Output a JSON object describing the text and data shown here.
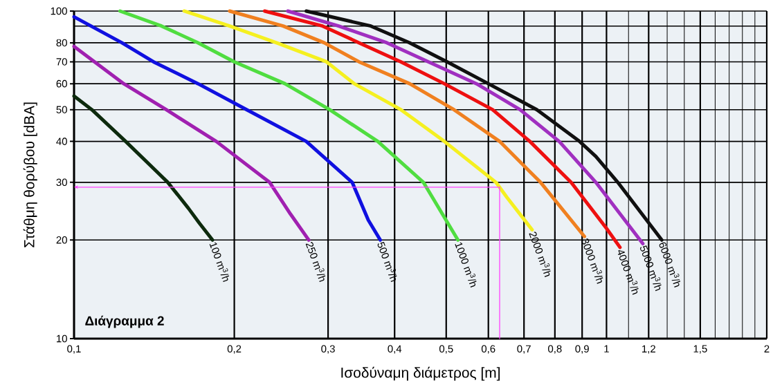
{
  "chart_data": {
    "type": "line",
    "xlabel": "Ισοδύναμη διάμετρος [m]",
    "ylabel": "Στάθμη θορύβου [dBA]",
    "annotations": [
      "Διάγραμμα 2"
    ],
    "log": "xy",
    "grid": true,
    "marker": "none",
    "line_style": "solid",
    "xlim": [
      0.1,
      2
    ],
    "ylim": [
      10,
      100
    ],
    "xticks": [
      {
        "value": 0.1,
        "label": "0,1"
      },
      {
        "value": 0.2,
        "label": "0,2"
      },
      {
        "value": 0.3,
        "label": "0,3"
      },
      {
        "value": 0.4,
        "label": "0,4"
      },
      {
        "value": 0.5,
        "label": "0,5"
      },
      {
        "value": 0.6,
        "label": "0,6"
      },
      {
        "value": 0.7,
        "label": "0,7"
      },
      {
        "value": 0.8,
        "label": "0,8"
      },
      {
        "value": 0.9,
        "label": "0,9"
      },
      1,
      {
        "value": 1.1,
        "label": null
      },
      {
        "value": 1.2,
        "label": "1,2"
      },
      {
        "value": 1.3,
        "label": null
      },
      {
        "value": 1.4,
        "label": null
      },
      {
        "value": 1.5,
        "label": "1,5"
      },
      {
        "value": 1.6,
        "label": null
      },
      {
        "value": 1.7,
        "label": null
      },
      {
        "value": 1.8,
        "label": null
      },
      {
        "value": 1.9,
        "label": null
      },
      2
    ],
    "yticks": [
      10,
      20,
      30,
      40,
      50,
      60,
      70,
      80,
      {
        "value": 90,
        "label": null
      },
      100
    ],
    "series": [
      {
        "name": "100 m$^{3}$/h",
        "color": "#0d2a0d",
        "x": [
          0.1,
          0.108,
          0.125,
          0.15,
          0.164,
          0.172,
          0.182
        ],
        "values": [
          55,
          50,
          40,
          30,
          25,
          22.5,
          20
        ]
      },
      {
        "name": "250 m$^{3}$/h",
        "color": "#a020b0",
        "x": [
          0.1,
          0.124,
          0.149,
          0.185,
          0.233,
          0.255,
          0.276
        ],
        "values": [
          78,
          60,
          50,
          40,
          30,
          24,
          20
        ]
      },
      {
        "name": "500 m$^{3}$/h",
        "color": "#1010e0",
        "x": [
          0.1,
          0.123,
          0.141,
          0.171,
          0.211,
          0.273,
          0.333,
          0.357,
          0.376
        ],
        "values": [
          96,
          80,
          70,
          60,
          50,
          40,
          30,
          23,
          20
        ]
      },
      {
        "name": "1000 m$^{3}$/h",
        "color": "#50dd40",
        "x": [
          0.122,
          0.146,
          0.171,
          0.2,
          0.249,
          0.302,
          0.372,
          0.453,
          0.526
        ],
        "values": [
          100,
          90,
          80,
          70,
          60,
          50,
          40,
          30,
          20
        ]
      },
      {
        "name": "2000 m$^{3}$/h",
        "color": "#f5f020",
        "x": [
          0.161,
          0.196,
          0.24,
          0.298,
          0.336,
          0.411,
          0.496,
          0.62,
          0.65,
          0.725
        ],
        "values": [
          100,
          90,
          80,
          70,
          60,
          50,
          40,
          30,
          27,
          21.5
        ]
      },
      {
        "name": "3000 m$^{3}$/h",
        "color": "#f08020",
        "x": [
          0.196,
          0.247,
          0.295,
          0.343,
          0.427,
          0.517,
          0.63,
          0.752,
          0.909
        ],
        "values": [
          100,
          90,
          80,
          70,
          60,
          50,
          40,
          30,
          20.5
        ]
      },
      {
        "name": "4000 m$^{3}$/h",
        "color": "#ee1010",
        "x": [
          0.228,
          0.293,
          0.343,
          0.411,
          0.496,
          0.611,
          0.718,
          0.858,
          1.0,
          1.06
        ],
        "values": [
          100,
          90,
          80,
          70,
          60,
          50,
          40,
          30,
          21.7,
          19
        ]
      },
      {
        "name": "5000 m$^{3}$/h",
        "color": "#a030c0",
        "x": [
          0.252,
          0.314,
          0.387,
          0.463,
          0.57,
          0.688,
          0.815,
          0.955,
          1.17
        ],
        "values": [
          100,
          90,
          80,
          70,
          60,
          50,
          40,
          30,
          19.5
        ]
      },
      {
        "name": "6000 m$^{3}$/h",
        "color": "#101010",
        "x": [
          0.273,
          0.361,
          0.427,
          0.502,
          0.6,
          0.74,
          0.89,
          0.955,
          1.05,
          1.27
        ],
        "values": [
          100,
          90,
          80,
          70,
          60,
          50,
          40,
          36,
          30,
          20
        ]
      },
      {
        "color": "#ff40ff",
        "x": [
          0.63,
          0.63,
          0.1
        ],
        "values": [
          10,
          29,
          29
        ]
      }
    ]
  }
}
